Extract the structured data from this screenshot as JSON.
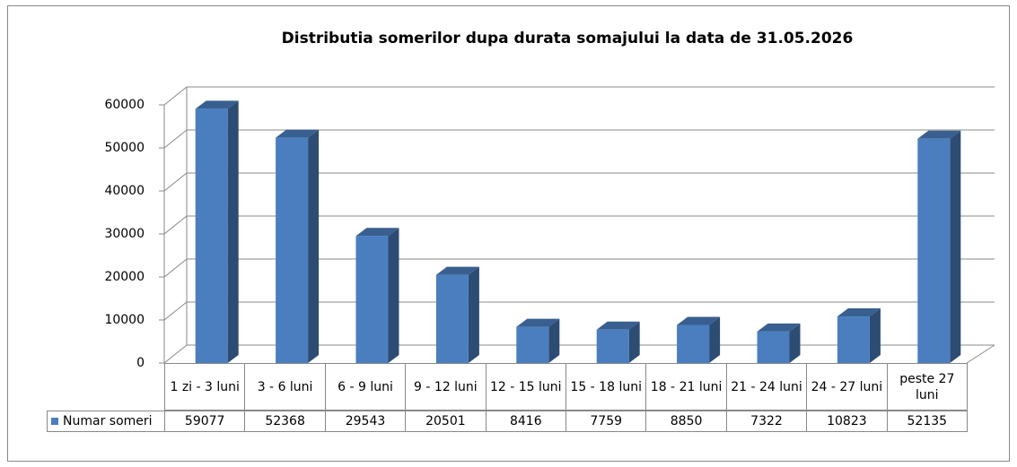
{
  "chart_data": {
    "type": "bar",
    "title": "Distributia somerilor dupa durata somajului la data de 31.05.2026",
    "categories": [
      "1 zi - 3 luni",
      "3 - 6 luni",
      "6 - 9 luni",
      "9 - 12 luni",
      "12 - 15 luni",
      "15 - 18 luni",
      "18 - 21 luni",
      "21 - 24 luni",
      "24 - 27 luni",
      "peste 27 luni"
    ],
    "series": [
      {
        "name": "Numar someri",
        "color": "#4a7ebf",
        "values": [
          59077,
          52368,
          29543,
          20501,
          8416,
          7759,
          8850,
          7322,
          10823,
          52135
        ]
      }
    ],
    "ylim": [
      0,
      60000
    ],
    "yticks": [
      0,
      10000,
      20000,
      30000,
      40000,
      50000,
      60000
    ],
    "grid": true
  }
}
